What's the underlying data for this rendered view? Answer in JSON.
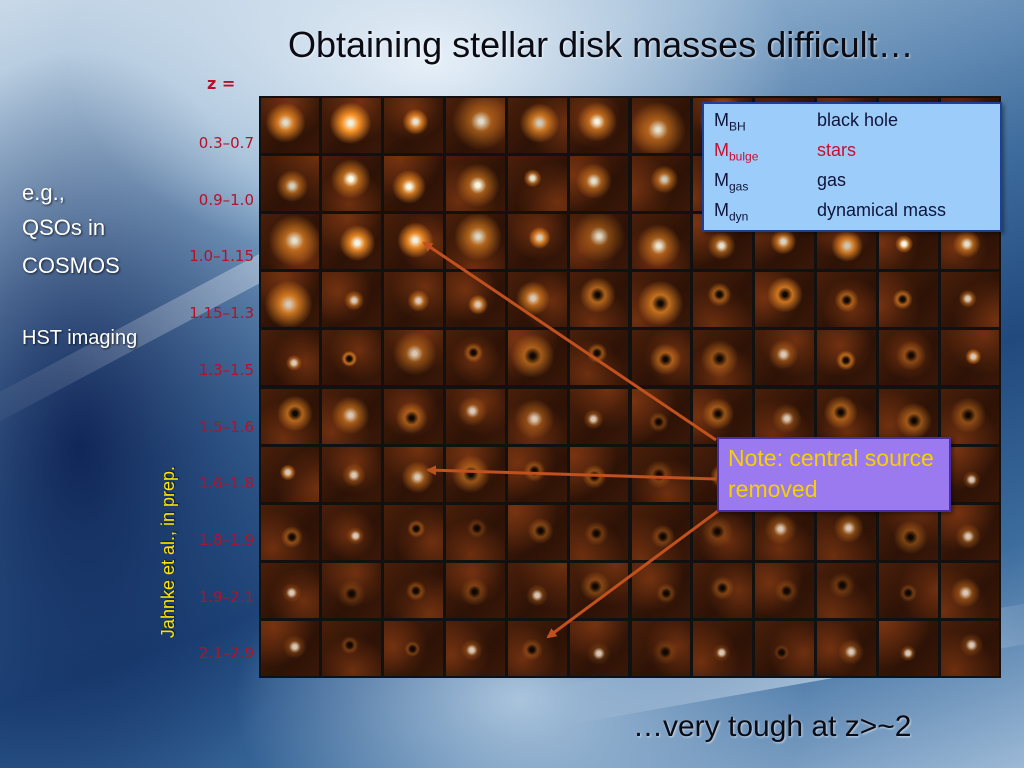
{
  "slide": {
    "title": "Obtaining stellar disk masses difficult…",
    "z_label": "z =",
    "z_bins": [
      "0.3–0.7",
      "0.9–1.0",
      "1.0–1.15",
      "1.15–1.3",
      "1.3–1.5",
      "1.5–1.6",
      "1.6–1.8",
      "1.8–1.9",
      "1.9–2.1",
      "2.1–2.9"
    ],
    "side_text": {
      "line1": "e.g.,",
      "line2": "QSOs in",
      "line3": "COSMOS",
      "line4": "HST imaging"
    },
    "credit": "Jahnke et al., in prep.",
    "legend": [
      {
        "sym": "M",
        "sub": "BH",
        "desc": "black hole",
        "highlight": false
      },
      {
        "sym": "M",
        "sub": "bulge",
        "desc": "stars",
        "highlight": true
      },
      {
        "sym": "M",
        "sub": "gas",
        "desc": "gas",
        "highlight": false
      },
      {
        "sym": "M",
        "sub": "dyn",
        "desc": "dynamical mass",
        "highlight": false
      }
    ],
    "note": "Note: central source removed",
    "bottom_text": "…very tough at z>~2",
    "grid": {
      "rows": 10,
      "cols": 12
    },
    "colors": {
      "zlabel": "#b3122a",
      "credit": "#ffe400",
      "legend_bg": "#9ccdfa",
      "note_bg": "#9b79ee",
      "note_text": "#f6d000",
      "arrow": "#c0501e",
      "timeline": "#e4001a"
    }
  }
}
